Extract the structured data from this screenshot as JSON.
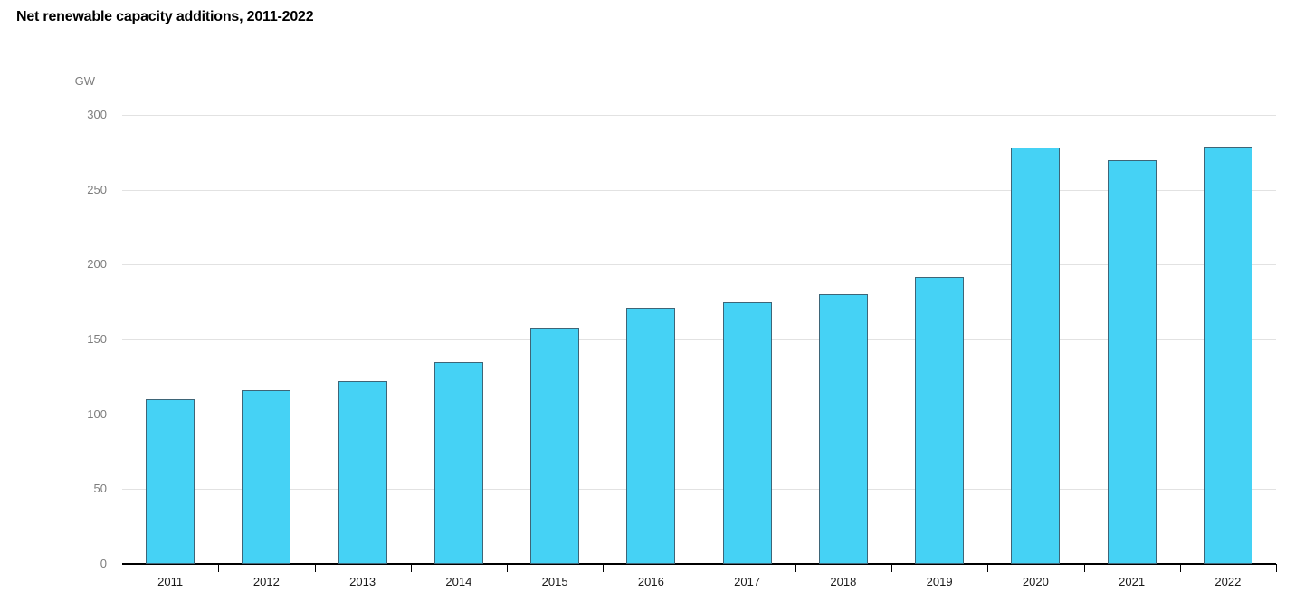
{
  "header": {
    "title": "Net renewable capacity additions, 2011-2022"
  },
  "chart_data": {
    "type": "bar",
    "title": "Net renewable capacity additions, 2011-2022",
    "unit_label": "GW",
    "xlabel": "",
    "ylabel": "GW",
    "categories": [
      "2011",
      "2012",
      "2013",
      "2014",
      "2015",
      "2016",
      "2017",
      "2018",
      "2019",
      "2020",
      "2021",
      "2022"
    ],
    "values": [
      110,
      116,
      122,
      135,
      158,
      171,
      175,
      180,
      192,
      278,
      270,
      279
    ],
    "series_name": "Net renewable capacity additions",
    "ylim": [
      0,
      300
    ],
    "yticks": [
      0,
      50,
      100,
      150,
      200,
      250,
      300
    ],
    "grid": "horizontal",
    "legend": "none",
    "colors": {
      "bar_fill": "#45D2F5",
      "bar_border": "#3E6577",
      "gridline": "#E2E2E2",
      "axis_line": "#000000",
      "y_tick_label": "#7D7D7D",
      "x_tick_label": "#1A1A1A",
      "title": "#000000",
      "background": "#FFFFFF"
    }
  }
}
